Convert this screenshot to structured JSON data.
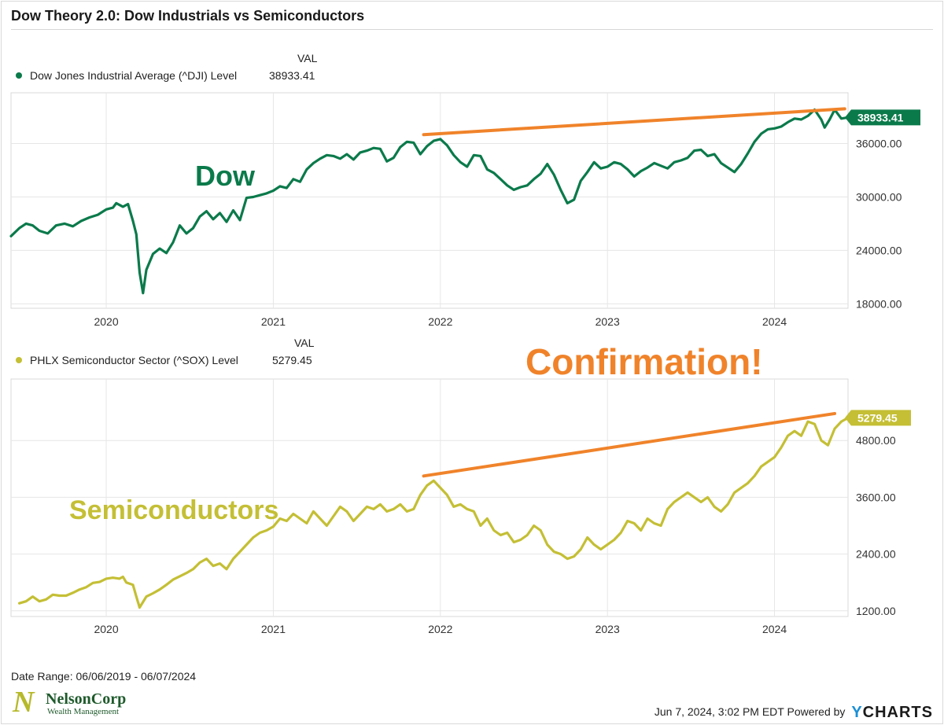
{
  "page": {
    "title": "Dow Theory 2.0: Dow Industrials vs Semiconductors",
    "date_range": "Date Range: 06/06/2019 - 06/07/2024",
    "timestamp": "Jun 7, 2024, 3:02 PM EDT",
    "powered_by": "Powered by",
    "brand_y": "Y",
    "brand_rest": "CHARTS",
    "logo": {
      "mark": "N",
      "name": "NelsonCorp",
      "sub": "Wealth Management"
    }
  },
  "chart_data": [
    {
      "type": "line",
      "legend_header": "VAL",
      "series_name": "Dow Jones Industrial Average (^DJI) Level",
      "last_value": 38933.41,
      "last_value_label": "38933.41",
      "color": "#0b7a4b",
      "annotation_label": "Dow",
      "annotation_color": "#0b7a4b",
      "trendline_color": "#f0832a",
      "trendline": [
        [
          2021.9,
          37000
        ],
        [
          2024.42,
          39900
        ]
      ],
      "x_ticks": [
        "2020",
        "2021",
        "2022",
        "2023",
        "2024"
      ],
      "y_ticks": [
        "18000.00",
        "24000.00",
        "30000.00",
        "36000.00"
      ],
      "xlim": [
        2019.43,
        2024.44
      ],
      "ylim": [
        17500,
        41700
      ],
      "points": [
        [
          2019.43,
          25600
        ],
        [
          2019.48,
          26500
        ],
        [
          2019.52,
          27000
        ],
        [
          2019.56,
          26800
        ],
        [
          2019.6,
          26200
        ],
        [
          2019.65,
          25900
        ],
        [
          2019.7,
          26800
        ],
        [
          2019.75,
          27000
        ],
        [
          2019.8,
          26700
        ],
        [
          2019.85,
          27300
        ],
        [
          2019.9,
          27700
        ],
        [
          2019.95,
          28000
        ],
        [
          2020.0,
          28600
        ],
        [
          2020.04,
          28800
        ],
        [
          2020.06,
          29300
        ],
        [
          2020.1,
          28900
        ],
        [
          2020.13,
          29200
        ],
        [
          2020.16,
          27300
        ],
        [
          2020.18,
          25800
        ],
        [
          2020.2,
          21500
        ],
        [
          2020.22,
          19200
        ],
        [
          2020.24,
          21800
        ],
        [
          2020.28,
          23600
        ],
        [
          2020.32,
          24200
        ],
        [
          2020.36,
          23700
        ],
        [
          2020.4,
          24900
        ],
        [
          2020.44,
          26800
        ],
        [
          2020.48,
          25900
        ],
        [
          2020.52,
          26500
        ],
        [
          2020.56,
          27800
        ],
        [
          2020.6,
          28400
        ],
        [
          2020.64,
          27500
        ],
        [
          2020.68,
          28200
        ],
        [
          2020.72,
          27200
        ],
        [
          2020.76,
          28500
        ],
        [
          2020.8,
          27400
        ],
        [
          2020.84,
          29900
        ],
        [
          2020.88,
          30000
        ],
        [
          2020.92,
          30200
        ],
        [
          2020.96,
          30400
        ],
        [
          2021.0,
          30700
        ],
        [
          2021.04,
          31200
        ],
        [
          2021.08,
          31000
        ],
        [
          2021.12,
          32000
        ],
        [
          2021.16,
          31700
        ],
        [
          2021.2,
          33100
        ],
        [
          2021.24,
          33800
        ],
        [
          2021.28,
          34300
        ],
        [
          2021.32,
          34700
        ],
        [
          2021.36,
          34600
        ],
        [
          2021.4,
          34300
        ],
        [
          2021.44,
          34800
        ],
        [
          2021.48,
          34200
        ],
        [
          2021.52,
          35000
        ],
        [
          2021.56,
          35200
        ],
        [
          2021.6,
          35500
        ],
        [
          2021.64,
          35400
        ],
        [
          2021.68,
          34000
        ],
        [
          2021.72,
          34400
        ],
        [
          2021.76,
          35600
        ],
        [
          2021.8,
          36200
        ],
        [
          2021.84,
          36100
        ],
        [
          2021.88,
          34800
        ],
        [
          2021.92,
          35700
        ],
        [
          2021.96,
          36300
        ],
        [
          2022.0,
          36500
        ],
        [
          2022.04,
          35800
        ],
        [
          2022.08,
          34700
        ],
        [
          2022.12,
          33900
        ],
        [
          2022.16,
          33400
        ],
        [
          2022.2,
          34700
        ],
        [
          2022.24,
          34600
        ],
        [
          2022.28,
          33100
        ],
        [
          2022.32,
          32700
        ],
        [
          2022.36,
          32000
        ],
        [
          2022.4,
          31300
        ],
        [
          2022.44,
          30800
        ],
        [
          2022.48,
          31100
        ],
        [
          2022.52,
          31300
        ],
        [
          2022.56,
          32000
        ],
        [
          2022.6,
          32600
        ],
        [
          2022.64,
          33700
        ],
        [
          2022.68,
          32500
        ],
        [
          2022.72,
          30800
        ],
        [
          2022.76,
          29300
        ],
        [
          2022.8,
          29700
        ],
        [
          2022.84,
          31800
        ],
        [
          2022.88,
          32800
        ],
        [
          2022.92,
          33900
        ],
        [
          2022.96,
          33200
        ],
        [
          2023.0,
          33400
        ],
        [
          2023.04,
          33900
        ],
        [
          2023.08,
          33700
        ],
        [
          2023.12,
          33100
        ],
        [
          2023.16,
          32300
        ],
        [
          2023.2,
          32900
        ],
        [
          2023.24,
          33300
        ],
        [
          2023.28,
          33800
        ],
        [
          2023.32,
          33500
        ],
        [
          2023.36,
          33200
        ],
        [
          2023.4,
          33900
        ],
        [
          2023.44,
          34100
        ],
        [
          2023.48,
          34400
        ],
        [
          2023.52,
          35200
        ],
        [
          2023.56,
          35300
        ],
        [
          2023.6,
          34600
        ],
        [
          2023.64,
          34800
        ],
        [
          2023.68,
          33800
        ],
        [
          2023.72,
          33300
        ],
        [
          2023.76,
          32800
        ],
        [
          2023.8,
          33700
        ],
        [
          2023.84,
          34900
        ],
        [
          2023.88,
          36200
        ],
        [
          2023.92,
          37100
        ],
        [
          2023.96,
          37600
        ],
        [
          2024.0,
          37700
        ],
        [
          2024.04,
          37900
        ],
        [
          2024.08,
          38400
        ],
        [
          2024.12,
          38800
        ],
        [
          2024.16,
          38700
        ],
        [
          2024.2,
          39100
        ],
        [
          2024.24,
          39800
        ],
        [
          2024.28,
          38700
        ],
        [
          2024.3,
          37800
        ],
        [
          2024.33,
          38700
        ],
        [
          2024.36,
          39800
        ],
        [
          2024.4,
          38800
        ],
        [
          2024.44,
          38933.41
        ]
      ]
    },
    {
      "type": "line",
      "legend_header": "VAL",
      "series_name": "PHLX Semiconductor Sector (^SOX) Level",
      "last_value": 5279.45,
      "last_value_label": "5279.45",
      "color": "#c4bf35",
      "annotation_label": "Semiconductors",
      "annotation_color": "#c4bf35",
      "overlay_text": "Confirmation!",
      "overlay_color": "#f0832a",
      "trendline_color": "#f0832a",
      "trendline": [
        [
          2021.9,
          4050
        ],
        [
          2024.36,
          5370
        ]
      ],
      "x_ticks": [
        "2020",
        "2021",
        "2022",
        "2023",
        "2024"
      ],
      "y_ticks": [
        "1200.00",
        "2400.00",
        "3600.00",
        "4800.00"
      ],
      "xlim": [
        2019.43,
        2024.44
      ],
      "ylim": [
        1080,
        6100
      ],
      "points": [
        [
          2019.48,
          1360
        ],
        [
          2019.52,
          1400
        ],
        [
          2019.56,
          1500
        ],
        [
          2019.6,
          1400
        ],
        [
          2019.64,
          1440
        ],
        [
          2019.68,
          1540
        ],
        [
          2019.72,
          1520
        ],
        [
          2019.76,
          1520
        ],
        [
          2019.8,
          1580
        ],
        [
          2019.84,
          1650
        ],
        [
          2019.88,
          1700
        ],
        [
          2019.92,
          1790
        ],
        [
          2019.96,
          1810
        ],
        [
          2020.0,
          1880
        ],
        [
          2020.04,
          1900
        ],
        [
          2020.08,
          1880
        ],
        [
          2020.1,
          1920
        ],
        [
          2020.12,
          1800
        ],
        [
          2020.16,
          1750
        ],
        [
          2020.18,
          1500
        ],
        [
          2020.2,
          1270
        ],
        [
          2020.24,
          1500
        ],
        [
          2020.28,
          1570
        ],
        [
          2020.32,
          1650
        ],
        [
          2020.36,
          1750
        ],
        [
          2020.4,
          1860
        ],
        [
          2020.44,
          1930
        ],
        [
          2020.48,
          2000
        ],
        [
          2020.52,
          2080
        ],
        [
          2020.56,
          2220
        ],
        [
          2020.6,
          2300
        ],
        [
          2020.64,
          2150
        ],
        [
          2020.68,
          2200
        ],
        [
          2020.72,
          2080
        ],
        [
          2020.76,
          2300
        ],
        [
          2020.8,
          2450
        ],
        [
          2020.84,
          2600
        ],
        [
          2020.88,
          2750
        ],
        [
          2020.92,
          2850
        ],
        [
          2020.96,
          2900
        ],
        [
          2021.0,
          2980
        ],
        [
          2021.04,
          3150
        ],
        [
          2021.08,
          3100
        ],
        [
          2021.12,
          3250
        ],
        [
          2021.16,
          3150
        ],
        [
          2021.2,
          3050
        ],
        [
          2021.24,
          3300
        ],
        [
          2021.28,
          3150
        ],
        [
          2021.32,
          3000
        ],
        [
          2021.36,
          3200
        ],
        [
          2021.4,
          3400
        ],
        [
          2021.44,
          3300
        ],
        [
          2021.48,
          3100
        ],
        [
          2021.52,
          3250
        ],
        [
          2021.56,
          3400
        ],
        [
          2021.6,
          3350
        ],
        [
          2021.64,
          3450
        ],
        [
          2021.68,
          3300
        ],
        [
          2021.72,
          3350
        ],
        [
          2021.76,
          3450
        ],
        [
          2021.8,
          3300
        ],
        [
          2021.84,
          3350
        ],
        [
          2021.88,
          3650
        ],
        [
          2021.92,
          3850
        ],
        [
          2021.96,
          3950
        ],
        [
          2022.0,
          3800
        ],
        [
          2022.04,
          3650
        ],
        [
          2022.08,
          3400
        ],
        [
          2022.12,
          3450
        ],
        [
          2022.16,
          3350
        ],
        [
          2022.2,
          3300
        ],
        [
          2022.24,
          3000
        ],
        [
          2022.28,
          3150
        ],
        [
          2022.32,
          2900
        ],
        [
          2022.36,
          2800
        ],
        [
          2022.4,
          2850
        ],
        [
          2022.44,
          2650
        ],
        [
          2022.48,
          2700
        ],
        [
          2022.52,
          2800
        ],
        [
          2022.56,
          3000
        ],
        [
          2022.6,
          2900
        ],
        [
          2022.64,
          2600
        ],
        [
          2022.68,
          2450
        ],
        [
          2022.72,
          2400
        ],
        [
          2022.76,
          2300
        ],
        [
          2022.8,
          2350
        ],
        [
          2022.84,
          2500
        ],
        [
          2022.88,
          2750
        ],
        [
          2022.92,
          2600
        ],
        [
          2022.96,
          2500
        ],
        [
          2023.0,
          2600
        ],
        [
          2023.04,
          2700
        ],
        [
          2023.08,
          2850
        ],
        [
          2023.12,
          3100
        ],
        [
          2023.16,
          3050
        ],
        [
          2023.2,
          2900
        ],
        [
          2023.24,
          3150
        ],
        [
          2023.28,
          3050
        ],
        [
          2023.32,
          3000
        ],
        [
          2023.36,
          3350
        ],
        [
          2023.4,
          3500
        ],
        [
          2023.44,
          3600
        ],
        [
          2023.48,
          3700
        ],
        [
          2023.52,
          3600
        ],
        [
          2023.56,
          3500
        ],
        [
          2023.6,
          3600
        ],
        [
          2023.64,
          3400
        ],
        [
          2023.68,
          3300
        ],
        [
          2023.72,
          3450
        ],
        [
          2023.76,
          3700
        ],
        [
          2023.8,
          3800
        ],
        [
          2023.84,
          3900
        ],
        [
          2023.88,
          4050
        ],
        [
          2023.92,
          4250
        ],
        [
          2023.96,
          4350
        ],
        [
          2024.0,
          4450
        ],
        [
          2024.04,
          4650
        ],
        [
          2024.08,
          4900
        ],
        [
          2024.12,
          5000
        ],
        [
          2024.16,
          4900
        ],
        [
          2024.2,
          5200
        ],
        [
          2024.24,
          5150
        ],
        [
          2024.28,
          4800
        ],
        [
          2024.32,
          4700
        ],
        [
          2024.36,
          5050
        ],
        [
          2024.4,
          5200
        ],
        [
          2024.44,
          5279.45
        ]
      ]
    }
  ]
}
